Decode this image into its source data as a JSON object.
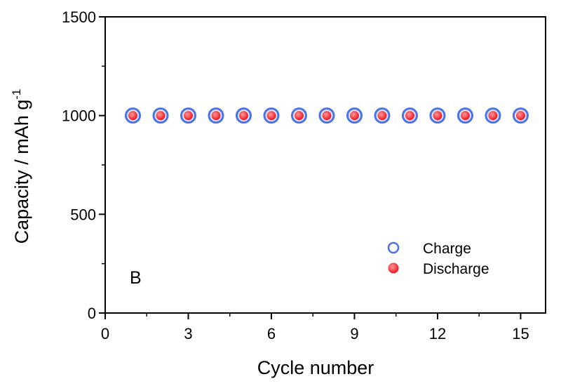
{
  "chart_data": {
    "type": "scatter",
    "panel_label": "B",
    "xlabel": "Cycle number",
    "ylabel": "Capacity / mAh g",
    "ylabel_superscript": "-1",
    "xlim": [
      0,
      15.9
    ],
    "ylim": [
      0,
      1500
    ],
    "xticks": [
      0,
      3,
      6,
      9,
      12,
      15
    ],
    "yticks": [
      0,
      500,
      1000,
      1500
    ],
    "grid": false,
    "legend_position": "lower-right",
    "colors": {
      "charge_ring": "#4a73e8",
      "charge_fill": "#dfe6ff",
      "discharge_fill": "#f0141e",
      "discharge_highlight": "#ff9a9a"
    },
    "series": [
      {
        "name": "Charge",
        "marker": "open-circle",
        "x": [
          1,
          2,
          3,
          4,
          5,
          6,
          7,
          8,
          9,
          10,
          11,
          12,
          13,
          14,
          15
        ],
        "y": [
          1000,
          1000,
          1000,
          1000,
          1000,
          1000,
          1000,
          1000,
          1000,
          1000,
          1000,
          1000,
          1000,
          1000,
          1000
        ]
      },
      {
        "name": "Discharge",
        "marker": "filled-circle",
        "x": [
          1,
          2,
          3,
          4,
          5,
          6,
          7,
          8,
          9,
          10,
          11,
          12,
          13,
          14,
          15
        ],
        "y": [
          1000,
          1000,
          1000,
          1000,
          1000,
          1000,
          1000,
          1000,
          1000,
          1000,
          1000,
          1000,
          1000,
          1000,
          1000
        ]
      }
    ]
  }
}
